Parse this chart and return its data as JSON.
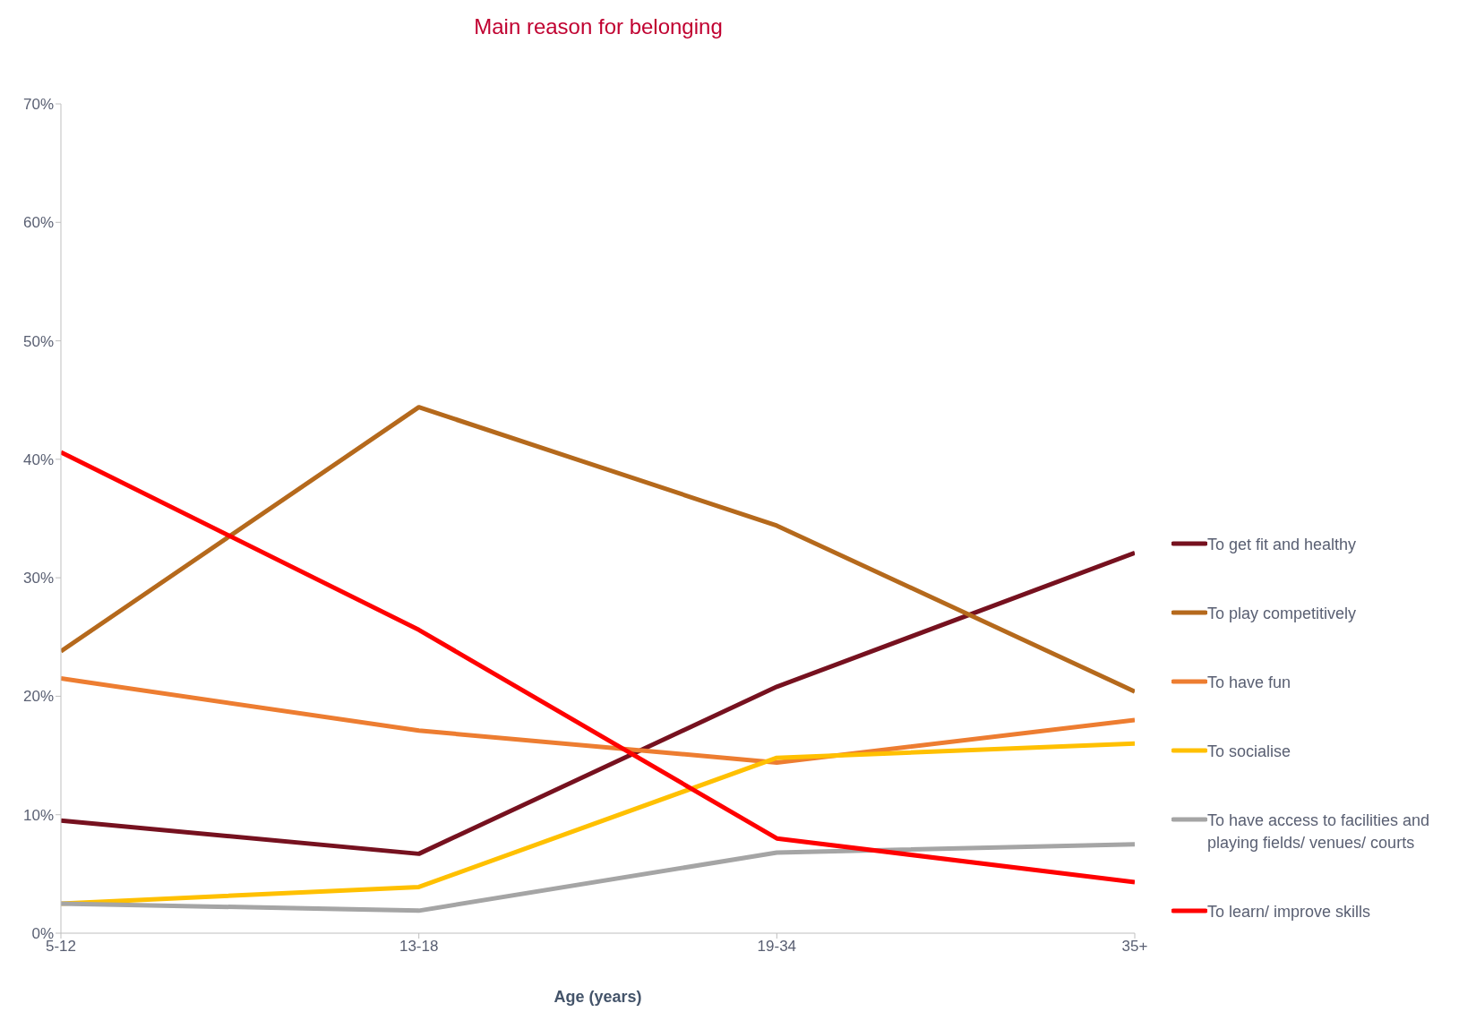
{
  "chart_data": {
    "type": "line",
    "title": "Main reason for belonging",
    "xlabel": "Age (years)",
    "categories": [
      "5-12",
      "13-18",
      "19-34",
      "35+"
    ],
    "series": [
      {
        "name": "To get fit and healthy",
        "color": "#76111f",
        "values": [
          9.5,
          6.7,
          20.8,
          32.1
        ]
      },
      {
        "name": "To play competitively",
        "color": "#b5691c",
        "values": [
          23.8,
          44.4,
          34.4,
          20.4
        ]
      },
      {
        "name": "To have fun",
        "color": "#ed7d31",
        "values": [
          21.5,
          17.1,
          14.4,
          18.0
        ]
      },
      {
        "name": "To socialise",
        "color": "#ffc000",
        "values": [
          2.5,
          3.9,
          14.8,
          16.0
        ]
      },
      {
        "name": "To have access to facilities and playing fields/ venues/ courts",
        "color": "#a5a5a5",
        "values": [
          2.5,
          1.9,
          6.8,
          7.5
        ]
      },
      {
        "name": "To learn/ improve skills",
        "color": "#ff0000",
        "values": [
          40.6,
          25.6,
          8.0,
          4.3
        ]
      }
    ],
    "ylim": [
      0,
      70
    ],
    "yticks": [
      {
        "value": 0,
        "label": "0%"
      },
      {
        "value": 10,
        "label": "10%"
      },
      {
        "value": 20,
        "label": "20%"
      },
      {
        "value": 30,
        "label": "30%"
      },
      {
        "value": 40,
        "label": "40%"
      },
      {
        "value": 50,
        "label": "50%"
      },
      {
        "value": 60,
        "label": "60%"
      },
      {
        "value": 70,
        "label": "70%"
      }
    ],
    "grid": false,
    "legend": "right",
    "marker": "none",
    "line_style": "solid"
  }
}
